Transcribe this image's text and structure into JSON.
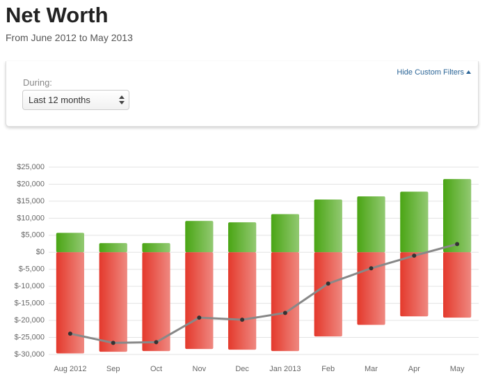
{
  "header": {
    "title": "Net Worth",
    "subtitle": "From June 2012 to May 2013"
  },
  "filters": {
    "toggle": "Hide Custom Filters",
    "during_label": "During:",
    "during_value": "Last 12 months"
  },
  "chart_data": {
    "type": "bar",
    "categories": [
      "Aug 2012",
      "Sep",
      "Oct",
      "Nov",
      "Dec",
      "Jan 2013",
      "Feb",
      "Mar",
      "Apr",
      "May"
    ],
    "series": [
      {
        "color": "#4aa514",
        "values": [
          5700,
          2700,
          2700,
          9200,
          8800,
          11200,
          15500,
          16400,
          17800,
          21500
        ]
      },
      {
        "color": "#e4392c",
        "values": [
          -29700,
          -29200,
          -29000,
          -28400,
          -28600,
          -29000,
          -24700,
          -21300,
          -18800,
          -19200
        ]
      },
      {
        "type": "line",
        "color": "#888888",
        "marker_color": "#333333",
        "values": [
          -23900,
          -26600,
          -26400,
          -19200,
          -19800,
          -17800,
          -9200,
          -4700,
          -1000,
          2400
        ]
      }
    ],
    "ylim": [
      -30000,
      25000
    ],
    "yticks": [
      {
        "value": -30000,
        "label": "$-30,000"
      },
      {
        "value": -25000,
        "label": "$-25,000"
      },
      {
        "value": -20000,
        "label": "$-20,000"
      },
      {
        "value": -15000,
        "label": "$-15,000"
      },
      {
        "value": -10000,
        "label": "$-10,000"
      },
      {
        "value": -5000,
        "label": "$-5,000"
      },
      {
        "value": 0,
        "label": "$0"
      },
      {
        "value": 5000,
        "label": "$5,000"
      },
      {
        "value": 10000,
        "label": "$10,000"
      },
      {
        "value": 15000,
        "label": "$15,000"
      },
      {
        "value": 20000,
        "label": "$20,000"
      },
      {
        "value": 25000,
        "label": "$25,000"
      }
    ],
    "grid": true
  }
}
